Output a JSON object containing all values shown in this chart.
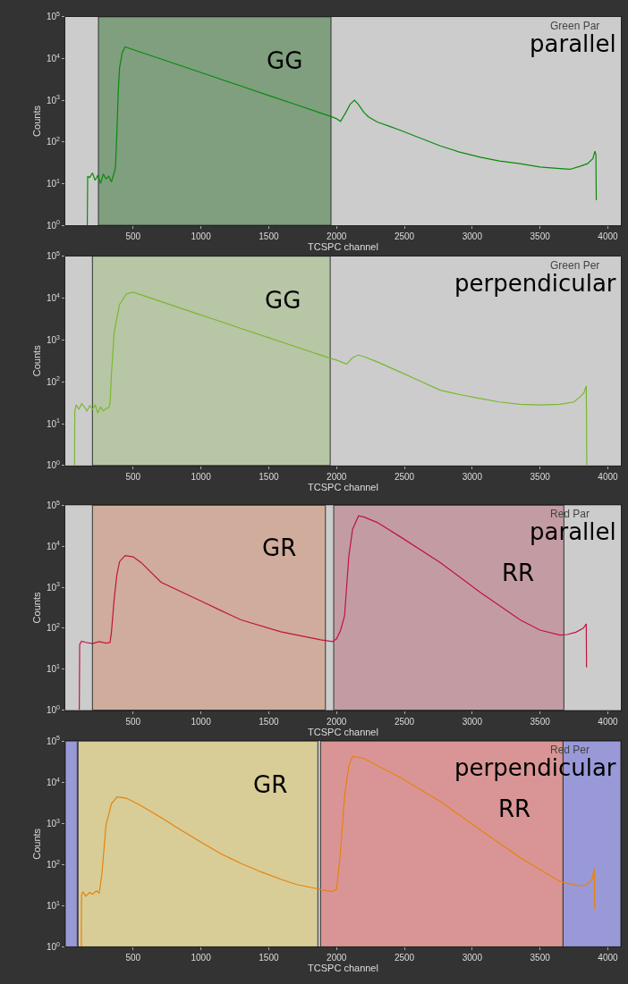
{
  "chart_data": [
    {
      "type": "line",
      "xlabel": "TCSPC channel",
      "ylabel": "Counts",
      "log": "y",
      "legend": false,
      "grid": false,
      "xlim": [
        0,
        4096
      ],
      "xticks": [
        500,
        1000,
        1500,
        2000,
        2500,
        3000,
        3500,
        4000
      ],
      "ylim": [
        1,
        100000
      ],
      "yticks": [
        {
          "value": 1,
          "label": "10$^{0}$"
        },
        {
          "value": 10,
          "label": "10$^{1}$"
        },
        {
          "value": 100,
          "label": "10$^{2}$"
        },
        {
          "value": 1000,
          "label": "10$^{3}$"
        },
        {
          "value": 10000,
          "label": "10$^{4}$"
        },
        {
          "value": 100000,
          "label": "10$^{5}$"
        }
      ],
      "bands": [
        {
          "axis": "x",
          "from": 244,
          "to": 1959,
          "label": "GG",
          "color": "#7f9f7f"
        }
      ],
      "annotations": [
        "Green Par",
        "parallel"
      ],
      "series": [
        {
          "color": "#0a8a0a",
          "x": [
            162,
            165,
            180,
            200,
            220,
            240,
            260,
            280,
            300,
            320,
            340,
            360,
            370,
            380,
            390,
            400,
            420,
            441,
            500,
            700,
            900,
            1100,
            1300,
            1500,
            1700,
            1900,
            1960,
            2000,
            2029,
            2070,
            2100,
            2132,
            2160,
            2200,
            2235,
            2300,
            2400,
            2470,
            2600,
            2765,
            2900,
            3059,
            3200,
            3353,
            3500,
            3647,
            3720,
            3794,
            3850,
            3890,
            3905,
            3912,
            3915
          ],
          "values": [
            1,
            15,
            14,
            18,
            12,
            16,
            10,
            17,
            13,
            15,
            11,
            18,
            25,
            150,
            1500,
            6000,
            14000,
            19000,
            16400,
            9900,
            5960,
            3590,
            2160,
            1300,
            785,
            473,
            407,
            360,
            310,
            520,
            800,
            1000,
            800,
            520,
            400,
            300,
            230,
            190,
            130,
            80,
            58,
            43,
            35,
            30,
            25,
            23,
            22,
            26,
            30,
            40,
            60,
            50,
            4
          ]
        }
      ]
    },
    {
      "type": "line",
      "xlabel": "TCSPC channel",
      "ylabel": "Counts",
      "log": "y",
      "legend": false,
      "grid": false,
      "xlim": [
        0,
        4096
      ],
      "xticks": [
        500,
        1000,
        1500,
        2000,
        2500,
        3000,
        3500,
        4000
      ],
      "ylim": [
        1,
        100000
      ],
      "yticks": [
        {
          "value": 1,
          "label": "10$^{0}$"
        },
        {
          "value": 10,
          "label": "10$^{1}$"
        },
        {
          "value": 100,
          "label": "10$^{2}$"
        },
        {
          "value": 1000,
          "label": "10$^{3}$"
        },
        {
          "value": 10000,
          "label": "10$^{4}$"
        },
        {
          "value": 100000,
          "label": "10$^{5}$"
        }
      ],
      "bands": [
        {
          "axis": "x",
          "from": 200,
          "to": 1953,
          "label": "GG",
          "color": "#b7c6a5"
        }
      ],
      "annotations": [
        "Green Per",
        "perpendicular"
      ],
      "series": [
        {
          "color": "#7ab82e",
          "x": [
            68,
            70,
            80,
            100,
            120,
            140,
            160,
            180,
            200,
            220,
            240,
            260,
            280,
            300,
            320,
            330,
            340,
            360,
            400,
            450,
            500,
            700,
            900,
            1100,
            1300,
            1500,
            1700,
            1953,
            2000,
            2074,
            2120,
            2162,
            2200,
            2300,
            2470,
            2600,
            2765,
            2900,
            3059,
            3200,
            3353,
            3500,
            3647,
            3750,
            3800,
            3824,
            3841,
            3845
          ],
          "values": [
            1,
            20,
            28,
            22,
            30,
            25,
            20,
            27,
            22,
            28,
            18,
            25,
            20,
            23,
            24,
            30,
            150,
            1500,
            7000,
            12500,
            13800,
            8380,
            5070,
            3080,
            1860,
            1130,
            685,
            365,
            330,
            265,
            380,
            435,
            400,
            300,
            170,
            110,
            63,
            50,
            40,
            33,
            29,
            28,
            29,
            33,
            45,
            55,
            80,
            1
          ]
        }
      ]
    },
    {
      "type": "line",
      "xlabel": "TCSPC channel",
      "ylabel": "Counts",
      "log": "y",
      "legend": false,
      "grid": false,
      "xlim": [
        0,
        4096
      ],
      "xticks": [
        500,
        1000,
        1500,
        2000,
        2500,
        3000,
        3500,
        4000
      ],
      "ylim": [
        1,
        100000
      ],
      "yticks": [
        {
          "value": 1,
          "label": "10$^{0}$"
        },
        {
          "value": 10,
          "label": "10$^{1}$"
        },
        {
          "value": 100,
          "label": "10$^{2}$"
        },
        {
          "value": 1000,
          "label": "10$^{3}$"
        },
        {
          "value": 10000,
          "label": "10$^{4}$"
        },
        {
          "value": 100000,
          "label": "10$^{5}$"
        }
      ],
      "bands": [
        {
          "axis": "x",
          "from": 200,
          "to": 1918,
          "label": "GR",
          "color": "#d0ac9c"
        },
        {
          "axis": "x",
          "from": 1979,
          "to": 3676,
          "label": "RR",
          "color": "#c39ca3"
        }
      ],
      "annotations": [
        "Red Par",
        "parallel"
      ],
      "series": [
        {
          "color": "#c0143c",
          "x": [
            103,
            106,
            120,
            150,
            200,
            250,
            300,
            330,
            340,
            360,
            380,
            400,
            441,
            500,
            559,
            706,
            1000,
            1147,
            1294,
            1588,
            1882,
            1970,
            2000,
            2030,
            2059,
            2090,
            2118,
            2162,
            2200,
            2300,
            2470,
            2765,
            3059,
            3353,
            3500,
            3647,
            3700,
            3765,
            3820,
            3841,
            3843
          ],
          "values": [
            1,
            40,
            48,
            45,
            42,
            47,
            43,
            45,
            80,
            500,
            2000,
            4200,
            5900,
            5500,
            4000,
            1320,
            460,
            270,
            160,
            82,
            52,
            47,
            55,
            90,
            200,
            5500,
            26000,
            55000,
            52000,
            38000,
            17000,
            4000,
            750,
            160,
            90,
            68,
            70,
            80,
            100,
            128,
            11
          ]
        }
      ]
    },
    {
      "type": "line",
      "xlabel": "TCSPC channel",
      "ylabel": "Counts",
      "log": "y",
      "legend": false,
      "grid": false,
      "xlim": [
        0,
        4096
      ],
      "xticks": [
        500,
        1000,
        1500,
        2000,
        2500,
        3000,
        3500,
        4000
      ],
      "ylim": [
        1,
        100000
      ],
      "yticks": [
        {
          "value": 1,
          "label": "10$^{0}$"
        },
        {
          "value": 10,
          "label": "10$^{1}$"
        },
        {
          "value": 100,
          "label": "10$^{2}$"
        },
        {
          "value": 1000,
          "label": "10$^{3}$"
        },
        {
          "value": 10000,
          "label": "10$^{4}$"
        },
        {
          "value": 100000,
          "label": "10$^{5}$"
        }
      ],
      "bands": [
        {
          "axis": "x",
          "from": 0,
          "to": 88,
          "label": null,
          "color": "#9999d8"
        },
        {
          "axis": "x",
          "from": 94,
          "to": 1862,
          "label": "GR",
          "color": "#d8cd97"
        },
        {
          "axis": "x",
          "from": 1882,
          "to": 3670,
          "label": "RR",
          "color": "#d99595"
        },
        {
          "axis": "x",
          "from": 3670,
          "to": 4096,
          "label": null,
          "color": "#9999d8"
        }
      ],
      "annotations": [
        "Red Per",
        "perpendicular"
      ],
      "series": [
        {
          "color": "#e8820c",
          "x": [
            118,
            120,
            130,
            150,
            180,
            200,
            230,
            250,
            270,
            300,
            340,
            382,
            450,
            550,
            706,
            850,
            1000,
            1150,
            1294,
            1450,
            1588,
            1700,
            1853,
            1900,
            1970,
            2000,
            2029,
            2060,
            2090,
            2118,
            2200,
            2470,
            2765,
            3059,
            3353,
            3647,
            3700,
            3794,
            3850,
            3885,
            3900,
            3903
          ],
          "values": [
            1,
            18,
            22,
            17,
            21,
            19,
            23,
            20,
            60,
            900,
            3000,
            4400,
            4100,
            2800,
            1380,
            700,
            350,
            180,
            107,
            65,
            44,
            33,
            26,
            24,
            22,
            25,
            200,
            5000,
            25000,
            42000,
            38000,
            13000,
            3400,
            700,
            148,
            39,
            35,
            30,
            33,
            45,
            80,
            8
          ]
        }
      ]
    }
  ]
}
